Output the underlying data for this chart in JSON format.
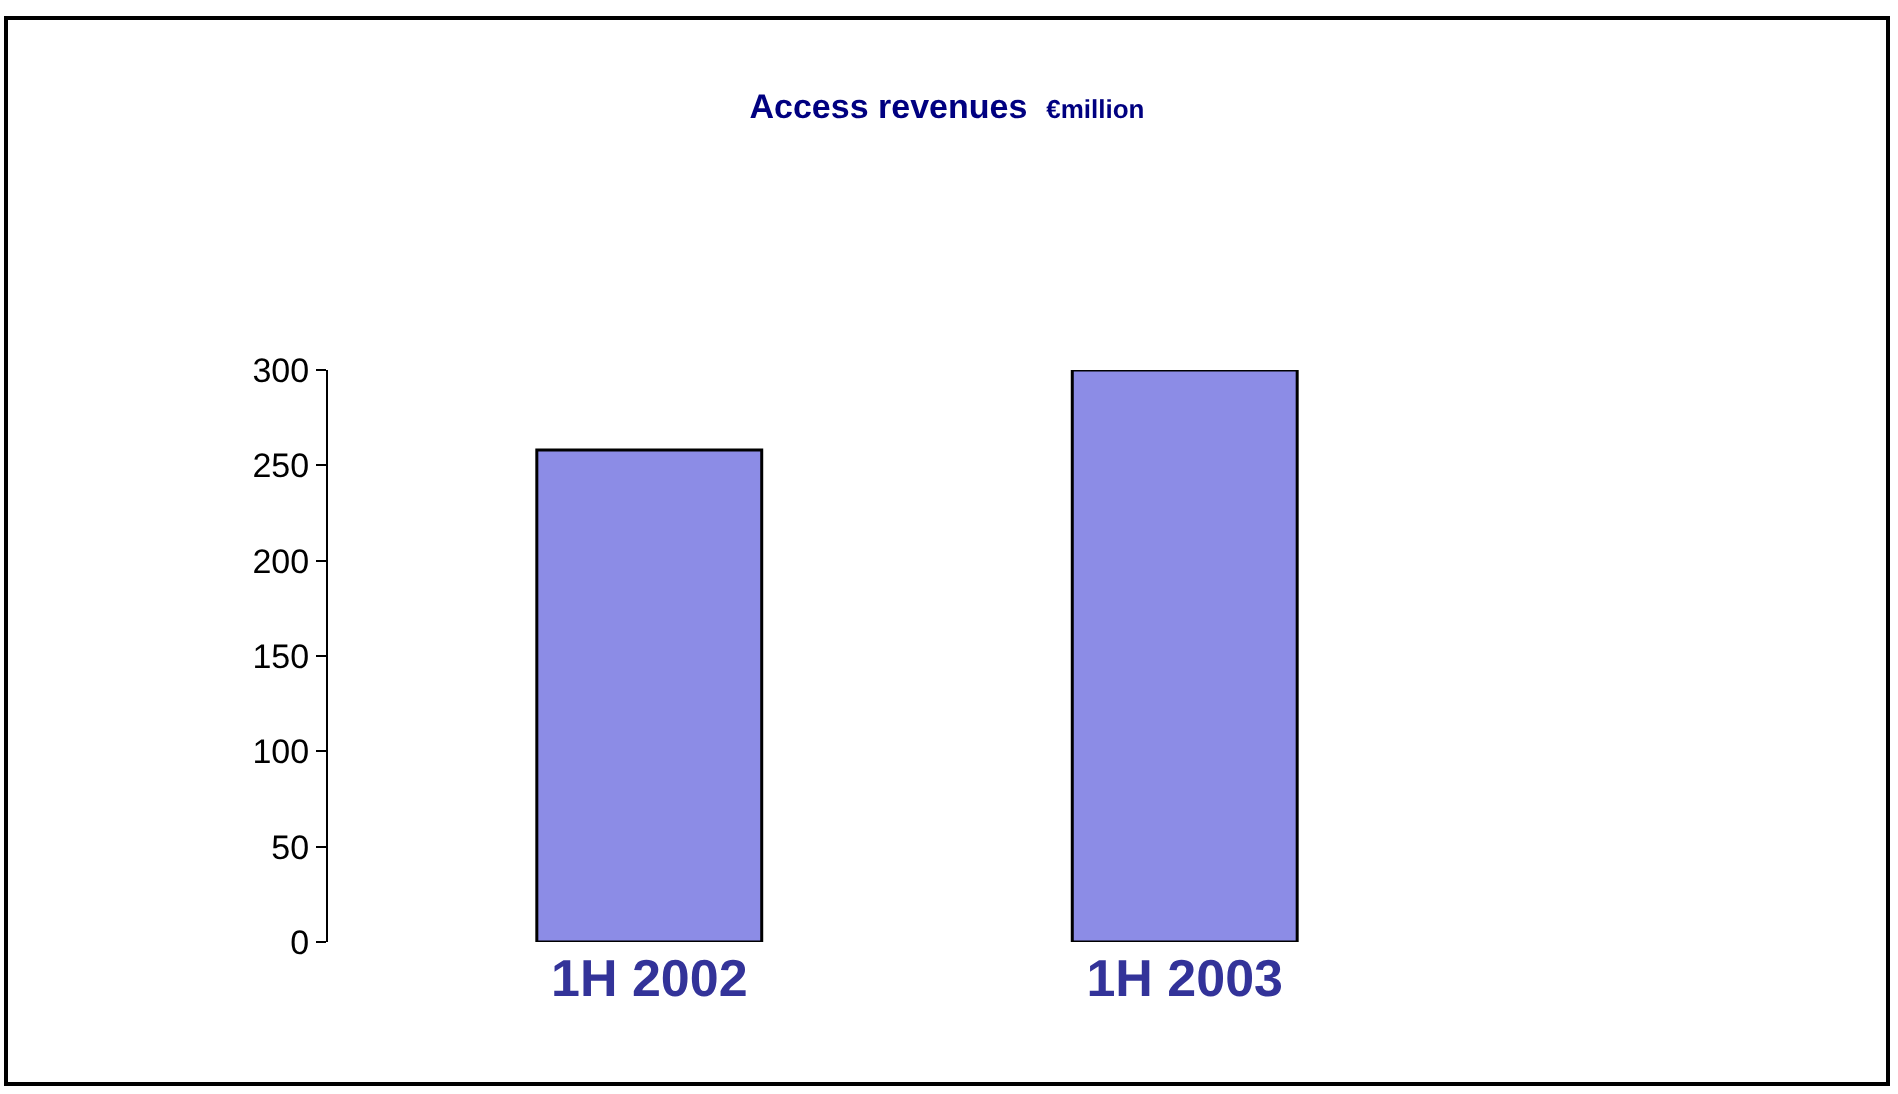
{
  "chart_data": {
    "type": "bar",
    "title": "Access revenues",
    "subtitle": "€million",
    "categories": [
      "1H 2002",
      "1H 2003"
    ],
    "values": [
      258,
      300
    ],
    "color": "#8c8ce6",
    "ylim": [
      0,
      300
    ],
    "yticks": [
      0,
      50,
      100,
      150,
      200,
      250,
      300
    ],
    "grid": false
  }
}
